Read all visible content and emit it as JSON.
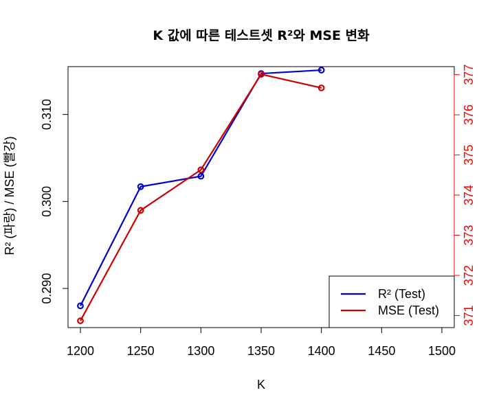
{
  "chart_data": {
    "type": "line",
    "title": "K 값에 따른 테스트셋 R²와 MSE 변화",
    "xlabel": "K",
    "ylabel_left": "R² (파랑) / MSE (빨강)",
    "x": [
      1200,
      1250,
      1300,
      1350,
      1400
    ],
    "xlim": [
      1200,
      1500
    ],
    "x_ticks": [
      "1200",
      "1250",
      "1300",
      "1350",
      "1400",
      "1450",
      "1500"
    ],
    "y_left_lim": [
      0.2855,
      0.3155
    ],
    "y_left_ticks": [
      "0.290",
      "0.300",
      "0.310"
    ],
    "y_right_lim": [
      370.7,
      377.2
    ],
    "y_right_ticks": [
      "371",
      "372",
      "373",
      "374",
      "375",
      "376",
      "377"
    ],
    "series": [
      {
        "name": "R² (Test)",
        "axis": "left",
        "color": "#0000CD",
        "values": [
          0.288,
          0.3017,
          0.3029,
          0.3147,
          0.3151
        ]
      },
      {
        "name": "MSE (Test)",
        "axis": "right",
        "color": "#CD0000",
        "values": [
          370.87,
          373.62,
          374.63,
          377.01,
          376.67
        ]
      }
    ],
    "right_axis_color": "#FF0000",
    "legend_position": "bottom-right",
    "grid": false
  }
}
